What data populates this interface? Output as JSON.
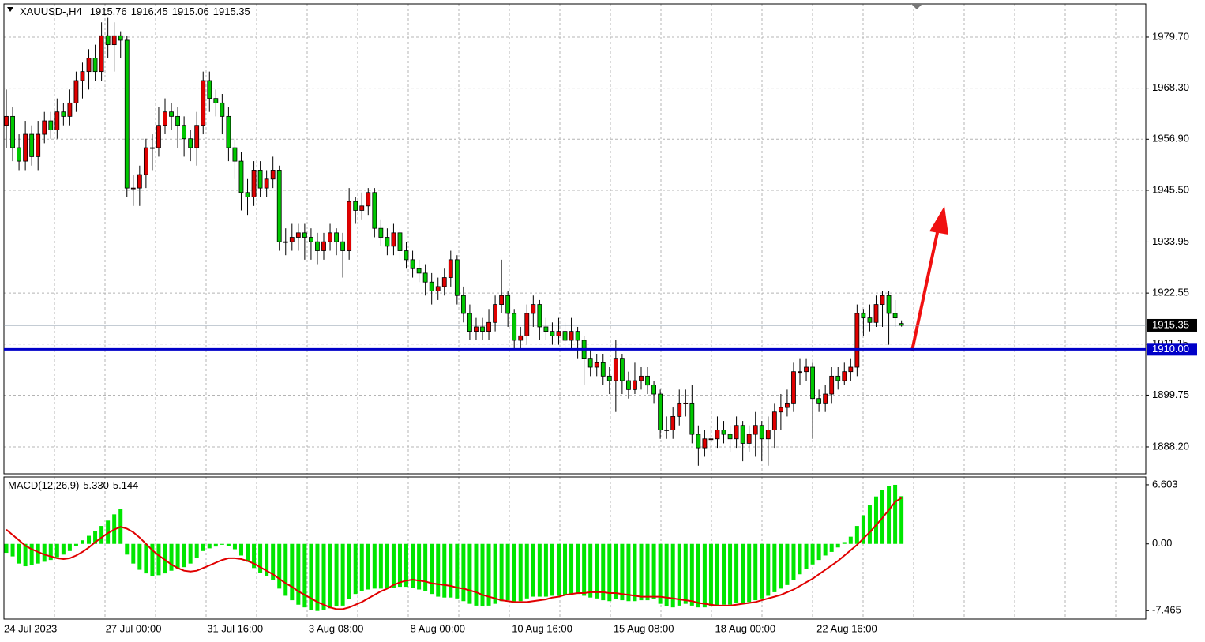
{
  "chart_data": [
    {
      "type": "candlestick",
      "title": "XAUUSD-,H4",
      "categories": [
        "24 Jul 2023",
        null,
        null,
        null,
        null,
        null,
        null,
        null,
        null,
        null,
        null,
        null,
        null,
        null,
        null,
        null,
        "27 Jul 00:00",
        null,
        null,
        null,
        null,
        null,
        null,
        null,
        null,
        null,
        null,
        null,
        null,
        null,
        null,
        null,
        "31 Jul 16:00",
        null,
        null,
        null,
        null,
        null,
        null,
        null,
        null,
        null,
        null,
        null,
        null,
        null,
        null,
        null,
        "3 Aug 08:00",
        null,
        null,
        null,
        null,
        null,
        null,
        null,
        null,
        null,
        null,
        null,
        null,
        null,
        null,
        null,
        "8 Aug 00:00",
        null,
        null,
        null,
        null,
        null,
        null,
        null,
        null,
        null,
        null,
        null,
        null,
        null,
        null,
        null,
        "10 Aug 16:00",
        null,
        null,
        null,
        null,
        null,
        null,
        null,
        null,
        null,
        null,
        null,
        null,
        null,
        null,
        null,
        "15 Aug 08:00",
        null,
        null,
        null,
        null,
        null,
        null,
        null,
        null,
        null,
        null,
        null,
        null,
        null,
        null,
        null,
        "18 Aug 00:00",
        null,
        null,
        null,
        null,
        null,
        null,
        null,
        null,
        null,
        null,
        null,
        null,
        null,
        null,
        null,
        "22 Aug 16:00",
        null,
        null,
        null,
        null,
        null,
        null,
        null,
        null,
        null,
        null,
        null,
        null,
        null
      ],
      "open": [
        1960,
        1962,
        1955,
        1952,
        1958,
        1953,
        1958,
        1961,
        1959,
        1963,
        1962,
        1965,
        1970,
        1972,
        1975,
        1972,
        1980,
        1978,
        1980,
        1979,
        1946,
        1946,
        1949,
        1955,
        1955,
        1960,
        1963,
        1962,
        1960,
        1957,
        1955,
        1960,
        1970,
        1966,
        1965,
        1962,
        1955,
        1952,
        1945,
        1944,
        1950,
        1946,
        1948,
        1950,
        1934,
        1934,
        1935,
        1936,
        1935,
        1934,
        1932,
        1934,
        1936,
        1934,
        1932,
        1943,
        1941,
        1942,
        1945,
        1937,
        1935,
        1933,
        1936,
        1932,
        1930,
        1928,
        1927,
        1925,
        1923,
        1924,
        1926,
        1930,
        1922,
        1918,
        1914,
        1915,
        1914,
        1916,
        1920,
        1922,
        1918,
        1912,
        1913,
        1918,
        1920,
        1915,
        1914,
        1913,
        1914,
        1912,
        1914,
        1912,
        1908,
        1906,
        1907,
        1904,
        1903,
        1908,
        1903,
        1901,
        1903,
        1904,
        1902,
        1900,
        1892,
        1892,
        1895,
        1898,
        1898,
        1891,
        1888,
        1890,
        1890,
        1892,
        1891,
        1890,
        1893,
        1889,
        1891,
        1893,
        1890,
        1892,
        1896,
        1897,
        1898,
        1905,
        1905,
        1906,
        1899,
        1898,
        1900,
        1904,
        1903,
        1905,
        1906,
        1918,
        1917,
        1916,
        1920,
        1922,
        1918,
        1915.76
      ],
      "high": [
        1968,
        1964,
        1958,
        1961,
        1960,
        1961,
        1963,
        1963,
        1966,
        1965,
        1968,
        1972,
        1974,
        1977,
        1978,
        1983,
        1984,
        1983,
        1981,
        1980,
        1949,
        1951,
        1957,
        1958,
        1964,
        1966,
        1965,
        1964,
        1962,
        1959,
        1963,
        1972,
        1972,
        1968,
        1967,
        1964,
        1957,
        1954,
        1948,
        1952,
        1952,
        1950,
        1953,
        1951,
        1937,
        1938,
        1938,
        1938,
        1937,
        1936,
        1936,
        1938,
        1937,
        1936,
        1946,
        1944,
        1945,
        1946,
        1946,
        1939,
        1937,
        1938,
        1937,
        1934,
        1932,
        1930,
        1929,
        1927,
        1926,
        1928,
        1932,
        1931,
        1924,
        1920,
        1917,
        1917,
        1919,
        1922,
        1930,
        1923,
        1919,
        1915,
        1920,
        1922,
        1921,
        1917,
        1916,
        1917,
        1916,
        1917,
        1915,
        1913,
        1910,
        1909,
        1909,
        1906,
        1912,
        1909,
        1905,
        1907,
        1906,
        1906,
        1903,
        1901,
        1895,
        1897,
        1901,
        1901,
        1902,
        1893,
        1892,
        1893,
        1895,
        1894,
        1893,
        1895,
        1894,
        1893,
        1896,
        1894,
        1895,
        1898,
        1900,
        1901,
        1907,
        1908,
        1908,
        1907,
        1901,
        1902,
        1906,
        1906,
        1907,
        1908,
        1920,
        1919,
        1920,
        1922,
        1923,
        1923,
        1921,
        1916.45
      ],
      "low": [
        1955,
        1952,
        1950,
        1950,
        1951,
        1950,
        1956,
        1957,
        1957,
        1960,
        1960,
        1963,
        1966,
        1968,
        1970,
        1970,
        1975,
        1972,
        1975,
        1944,
        1942,
        1942,
        1946,
        1950,
        1953,
        1958,
        1959,
        1955,
        1953,
        1952,
        1951,
        1958,
        1963,
        1962,
        1958,
        1952,
        1948,
        1941,
        1940,
        1942,
        1944,
        1944,
        1946,
        1932,
        1931,
        1932,
        1932,
        1930,
        1930,
        1929,
        1930,
        1932,
        1931,
        1926,
        1930,
        1938,
        1939,
        1940,
        1935,
        1933,
        1931,
        1931,
        1930,
        1928,
        1926,
        1925,
        1922,
        1920,
        1921,
        1922,
        1924,
        1920,
        1916,
        1912,
        1912,
        1912,
        1912,
        1914,
        1918,
        1915,
        1910,
        1910,
        1911,
        1915,
        1912,
        1912,
        1911,
        1911,
        1910,
        1910,
        1908,
        1902,
        1904,
        1904,
        1902,
        1900,
        1896,
        1900,
        1899,
        1900,
        1901,
        1900,
        1898,
        1890,
        1890,
        1890,
        1893,
        1895,
        1889,
        1884,
        1886,
        1887,
        1888,
        1889,
        1887,
        1888,
        1885,
        1887,
        1886,
        1885,
        1884,
        1888,
        1892,
        1895,
        1896,
        1902,
        1903,
        1890,
        1896,
        1896,
        1898,
        1901,
        1902,
        1903,
        1904,
        1913,
        1914,
        1915,
        1915,
        1911,
        1915,
        1915.06
      ],
      "close": [
        1962,
        1955,
        1952,
        1958,
        1953,
        1958,
        1961,
        1959,
        1963,
        1962,
        1965,
        1970,
        1972,
        1975,
        1972,
        1980,
        1978,
        1980,
        1979,
        1946,
        1946,
        1949,
        1955,
        1955,
        1960,
        1963,
        1962,
        1960,
        1957,
        1955,
        1960,
        1970,
        1966,
        1965,
        1962,
        1955,
        1952,
        1945,
        1944,
        1950,
        1946,
        1948,
        1950,
        1934,
        1934,
        1935,
        1936,
        1935,
        1934,
        1932,
        1934,
        1936,
        1934,
        1932,
        1943,
        1941,
        1942,
        1945,
        1937,
        1935,
        1933,
        1936,
        1932,
        1930,
        1928,
        1927,
        1925,
        1923,
        1924,
        1926,
        1930,
        1922,
        1918,
        1914,
        1915,
        1914,
        1916,
        1920,
        1922,
        1918,
        1912,
        1913,
        1918,
        1920,
        1915,
        1914,
        1913,
        1914,
        1912,
        1914,
        1912,
        1908,
        1906,
        1907,
        1904,
        1903,
        1908,
        1903,
        1901,
        1903,
        1904,
        1902,
        1900,
        1892,
        1892,
        1895,
        1898,
        1898,
        1891,
        1888,
        1890,
        1890,
        1892,
        1891,
        1890,
        1893,
        1889,
        1891,
        1893,
        1890,
        1892,
        1896,
        1897,
        1898,
        1905,
        1905,
        1906,
        1899,
        1898,
        1900,
        1904,
        1903,
        1905,
        1906,
        1918,
        1917,
        1916,
        1920,
        1922,
        1918,
        1917,
        1915.35
      ],
      "up_color": "#e00000",
      "down_color": "#00c800",
      "ylim": [
        1882.2,
        1987.1
      ],
      "yticks": [
        {
          "value": 1979.7,
          "label": "1979.70"
        },
        {
          "value": 1968.3,
          "label": "1968.30"
        },
        {
          "value": 1956.9,
          "label": "1956.90"
        },
        {
          "value": 1945.5,
          "label": "1945.50"
        },
        1933.95,
        1922.55,
        1911.15,
        1899.75,
        {
          "value": 1888.2,
          "label": "1888.20"
        }
      ],
      "grid": true,
      "hlines": [
        {
          "value": 1910,
          "label": "1910.00",
          "color": "#0000c8"
        }
      ]
    },
    {
      "type": "macd",
      "title": "MACD(12,26,9)",
      "ylim": [
        -8.41,
        7.48
      ],
      "yticks": [
        6.603,
        {
          "value": 0,
          "label": "0.00"
        },
        -7.465
      ],
      "histogram": {
        "color": "#00e600",
        "value_labels": {
          "141": "5.330"
        },
        "values": [
          -1.0,
          -1.4,
          -2.2,
          -2.5,
          -2.4,
          -2.2,
          -2.0,
          -1.8,
          -1.5,
          -1.2,
          -0.8,
          -0.2,
          0.4,
          0.9,
          1.4,
          2.0,
          2.6,
          3.3,
          3.9,
          -1.2,
          -2.2,
          -2.9,
          -3.3,
          -3.6,
          -3.5,
          -3.3,
          -3.0,
          -2.8,
          -2.6,
          -2.2,
          -1.6,
          -0.8,
          -0.5,
          -0.3,
          -0.1,
          -0.2,
          -0.6,
          -1.3,
          -2.0,
          -2.7,
          -3.2,
          -3.6,
          -4.0,
          -5.0,
          -5.8,
          -6.3,
          -6.8,
          -7.1,
          -7.4,
          -7.5,
          -7.4,
          -7.2,
          -7.0,
          -6.9,
          -6.2,
          -5.6,
          -5.3,
          -5.1,
          -5.0,
          -5.0,
          -4.9,
          -4.9,
          -4.8,
          -4.8,
          -4.9,
          -5.1,
          -5.3,
          -5.6,
          -5.9,
          -6.0,
          -6.0,
          -6.1,
          -6.4,
          -6.7,
          -6.9,
          -7.0,
          -6.9,
          -6.7,
          -6.4,
          -6.3,
          -6.5,
          -6.4,
          -6.1,
          -5.9,
          -5.9,
          -5.9,
          -5.8,
          -5.8,
          -5.7,
          -5.6,
          -5.6,
          -5.8,
          -6.0,
          -6.1,
          -6.3,
          -6.4,
          -6.2,
          -6.3,
          -6.4,
          -6.4,
          -6.3,
          -6.3,
          -6.2,
          -6.7,
          -7.0,
          -7.1,
          -6.9,
          -6.7,
          -6.9,
          -7.1,
          -7.1,
          -7.0,
          -6.9,
          -6.8,
          -6.8,
          -6.6,
          -6.6,
          -6.5,
          -6.3,
          -6.1,
          -5.8,
          -5.4,
          -5.0,
          -4.6,
          -4.0,
          -3.4,
          -2.8,
          -2.3,
          -1.8,
          -1.3,
          -0.9,
          -0.4,
          0.2,
          0.8,
          2.0,
          3.2,
          4.3,
          5.3,
          6.0,
          6.5,
          6.6,
          5.33
        ]
      },
      "signal": {
        "color": "#e00000",
        "values": [
          1.6,
          1.0,
          0.4,
          -0.2,
          -0.6,
          -0.9,
          -1.2,
          -1.4,
          -1.6,
          -1.7,
          -1.6,
          -1.3,
          -0.9,
          -0.4,
          0.2,
          0.7,
          1.2,
          1.6,
          1.9,
          1.7,
          1.3,
          0.7,
          0.0,
          -0.7,
          -1.3,
          -1.8,
          -2.3,
          -2.7,
          -3.0,
          -3.1,
          -3.0,
          -2.7,
          -2.4,
          -2.1,
          -1.8,
          -1.6,
          -1.6,
          -1.7,
          -1.9,
          -2.2,
          -2.6,
          -3.0,
          -3.4,
          -3.9,
          -4.4,
          -4.8,
          -5.3,
          -5.7,
          -6.1,
          -6.5,
          -6.8,
          -7.1,
          -7.3,
          -7.3,
          -7.1,
          -6.8,
          -6.5,
          -6.1,
          -5.7,
          -5.3,
          -5.0,
          -4.6,
          -4.3,
          -4.1,
          -4.0,
          -4.1,
          -4.2,
          -4.4,
          -4.5,
          -4.6,
          -4.7,
          -4.9,
          -5.0,
          -5.2,
          -5.4,
          -5.7,
          -5.9,
          -6.1,
          -6.3,
          -6.4,
          -6.5,
          -6.5,
          -6.5,
          -6.4,
          -6.3,
          -6.2,
          -6.0,
          -5.9,
          -5.7,
          -5.6,
          -5.5,
          -5.5,
          -5.4,
          -5.4,
          -5.4,
          -5.5,
          -5.5,
          -5.6,
          -5.7,
          -5.8,
          -5.9,
          -5.9,
          -5.9,
          -5.9,
          -6.0,
          -6.1,
          -6.2,
          -6.3,
          -6.4,
          -6.6,
          -6.7,
          -6.8,
          -6.9,
          -6.9,
          -6.9,
          -6.8,
          -6.7,
          -6.6,
          -6.5,
          -6.3,
          -6.1,
          -5.9,
          -5.7,
          -5.4,
          -5.1,
          -4.7,
          -4.3,
          -3.9,
          -3.4,
          -2.9,
          -2.4,
          -1.9,
          -1.3,
          -0.7,
          -0.1,
          0.6,
          1.3,
          2.1,
          2.9,
          3.8,
          4.7,
          5.144
        ]
      }
    }
  ]
}
